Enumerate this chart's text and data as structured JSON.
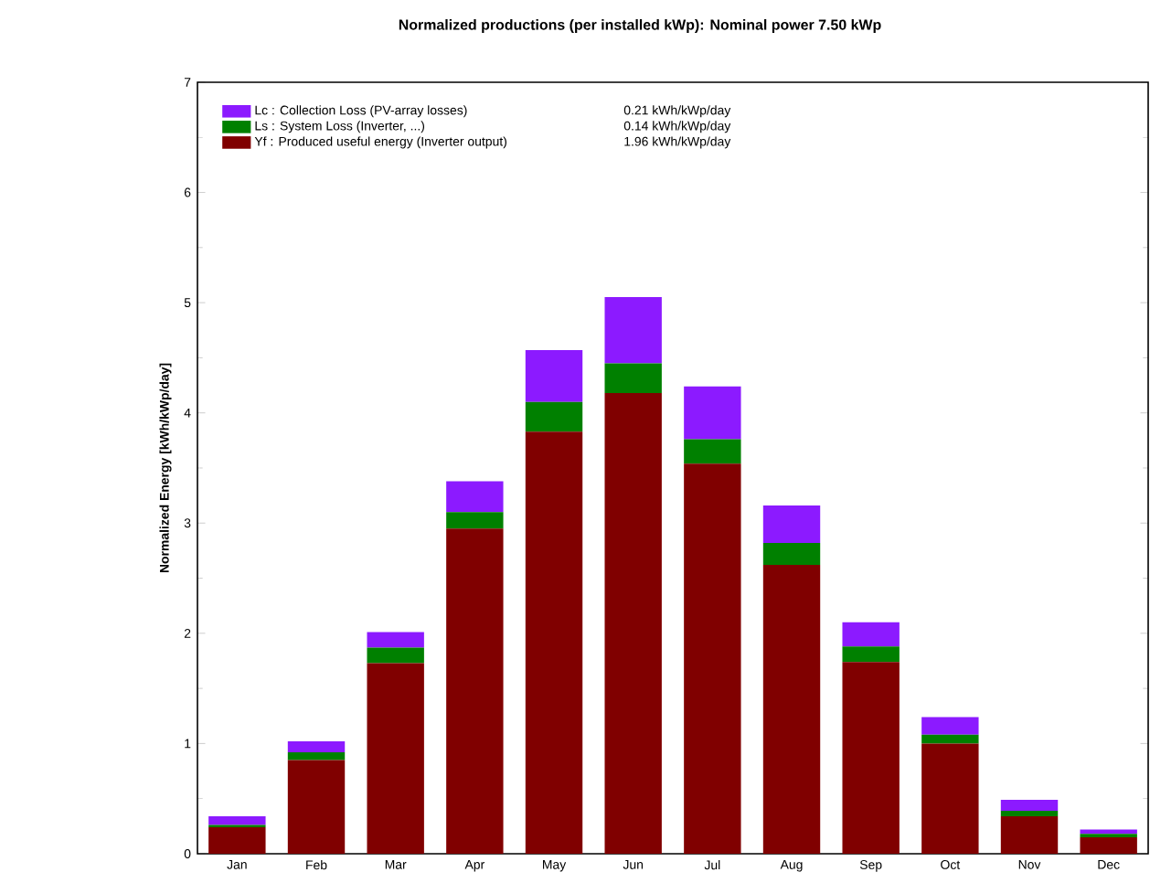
{
  "chart_data": {
    "type": "bar",
    "stacked": true,
    "title": "Normalized productions (per installed kWp):  Nominal power 7.50 kWp",
    "ylabel": "Normalized Energy [kWh/kWp/day]",
    "categories": [
      "Jan",
      "Feb",
      "Mar",
      "Apr",
      "May",
      "Jun",
      "Jul",
      "Aug",
      "Sep",
      "Oct",
      "Nov",
      "Dec"
    ],
    "series": [
      {
        "name": "Yf : Produced useful energy  (Inverter output)",
        "color": "#800000",
        "values": [
          0.24,
          0.85,
          1.73,
          2.95,
          3.83,
          4.18,
          3.54,
          2.62,
          1.74,
          1.0,
          0.34,
          0.15
        ]
      },
      {
        "name": "Ls : System Loss  (Inverter, ...)",
        "color": "#008000",
        "values": [
          0.02,
          0.07,
          0.14,
          0.15,
          0.27,
          0.27,
          0.22,
          0.2,
          0.14,
          0.08,
          0.05,
          0.03
        ]
      },
      {
        "name": "Lc : Collection Loss (PV-array losses)",
        "color": "#8c1aff",
        "values": [
          0.08,
          0.1,
          0.14,
          0.28,
          0.47,
          0.6,
          0.48,
          0.34,
          0.22,
          0.16,
          0.1,
          0.04
        ]
      }
    ],
    "annotations": [
      "1.96 kWh/kWp/day",
      "0.14 kWh/kWp/day",
      "0.21 kWh/kWp/day"
    ],
    "ylim": [
      0,
      7
    ],
    "yticks": [
      0,
      1,
      2,
      3,
      4,
      5,
      6,
      7
    ],
    "legend": "top left",
    "grid": false
  }
}
